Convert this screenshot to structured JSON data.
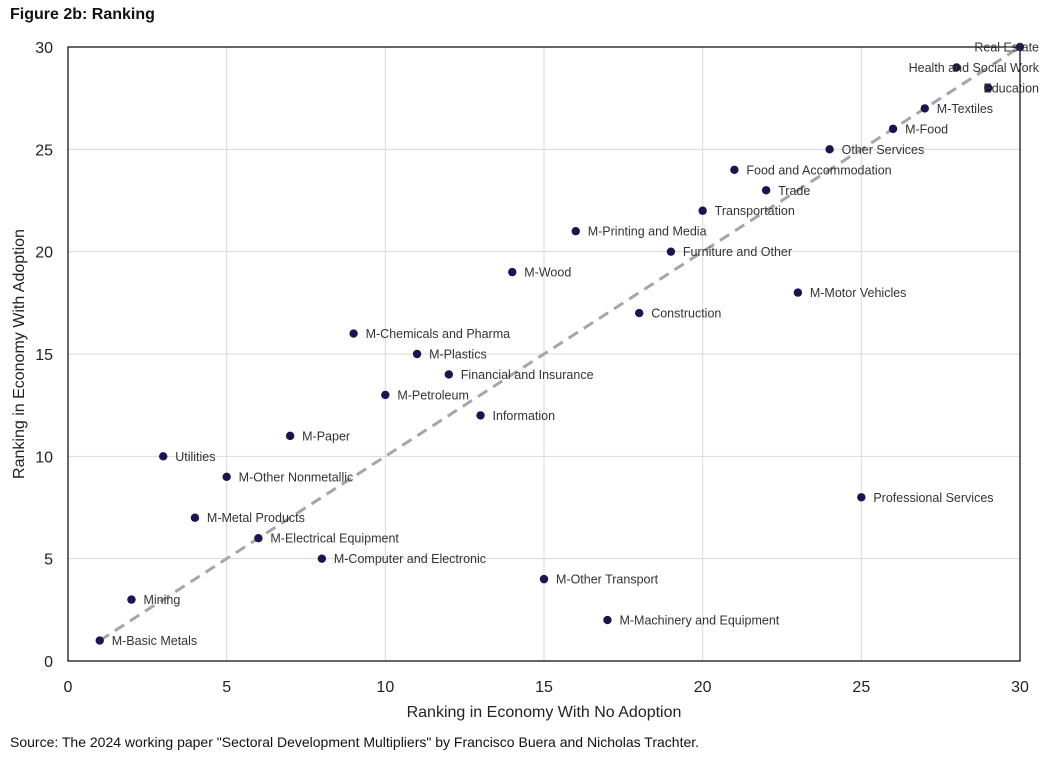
{
  "figure_title": "Figure 2b: Ranking",
  "source_note": "Source: The 2024 working paper \"Sectoral Development Multipliers\" by Francisco Buera and Nicholas Trachter.",
  "colors": {
    "point": "#1a1450",
    "trend": "#a6a6a6",
    "grid": "#d9d9d9",
    "frame": "#000000"
  },
  "chart_data": {
    "type": "scatter",
    "xlabel": "Ranking in Economy With No Adoption",
    "ylabel": "Ranking in Economy With Adoption",
    "xlim": [
      0,
      30
    ],
    "ylim": [
      0,
      30
    ],
    "xticks": [
      0,
      5,
      10,
      15,
      20,
      25,
      30
    ],
    "yticks": [
      0,
      5,
      10,
      15,
      20,
      25,
      30
    ],
    "grid": true,
    "trendline": {
      "style": "dashed",
      "from": [
        1,
        1
      ],
      "to": [
        30,
        30
      ]
    },
    "points": [
      {
        "label": "Real Estate",
        "x": 30,
        "y": 30
      },
      {
        "label": "Health and Social Work",
        "x": 28,
        "y": 29
      },
      {
        "label": "Education",
        "x": 29,
        "y": 28
      },
      {
        "label": "M-Textiles",
        "x": 27,
        "y": 27
      },
      {
        "label": "M-Food",
        "x": 26,
        "y": 26
      },
      {
        "label": "Other Services",
        "x": 24,
        "y": 25
      },
      {
        "label": "Food and Accommodation",
        "x": 21,
        "y": 24
      },
      {
        "label": "Trade",
        "x": 22,
        "y": 23
      },
      {
        "label": "Transportation",
        "x": 20,
        "y": 22
      },
      {
        "label": "M-Printing and Media",
        "x": 16,
        "y": 21
      },
      {
        "label": "Furniture and Other",
        "x": 19,
        "y": 20
      },
      {
        "label": "M-Wood",
        "x": 14,
        "y": 19
      },
      {
        "label": "M-Motor Vehicles",
        "x": 23,
        "y": 18
      },
      {
        "label": "Construction",
        "x": 18,
        "y": 17
      },
      {
        "label": "M-Chemicals and Pharma",
        "x": 9,
        "y": 16
      },
      {
        "label": "M-Plastics",
        "x": 11,
        "y": 15
      },
      {
        "label": "Financial and Insurance",
        "x": 12,
        "y": 14
      },
      {
        "label": "M-Petroleum",
        "x": 10,
        "y": 13
      },
      {
        "label": "Information",
        "x": 13,
        "y": 12
      },
      {
        "label": "M-Paper",
        "x": 7,
        "y": 11
      },
      {
        "label": "Utilities",
        "x": 3,
        "y": 10
      },
      {
        "label": "M-Other Nonmetallic",
        "x": 5,
        "y": 9
      },
      {
        "label": "Professional Services",
        "x": 25,
        "y": 8
      },
      {
        "label": "M-Metal Products",
        "x": 4,
        "y": 7
      },
      {
        "label": "M-Electrical Equipment",
        "x": 6,
        "y": 6
      },
      {
        "label": "M-Computer and Electronic",
        "x": 8,
        "y": 5
      },
      {
        "label": "M-Other Transport",
        "x": 15,
        "y": 4
      },
      {
        "label": "Mining",
        "x": 2,
        "y": 3
      },
      {
        "label": "M-Machinery and Equipment",
        "x": 17,
        "y": 2
      },
      {
        "label": "M-Basic Metals",
        "x": 1,
        "y": 1
      }
    ]
  }
}
